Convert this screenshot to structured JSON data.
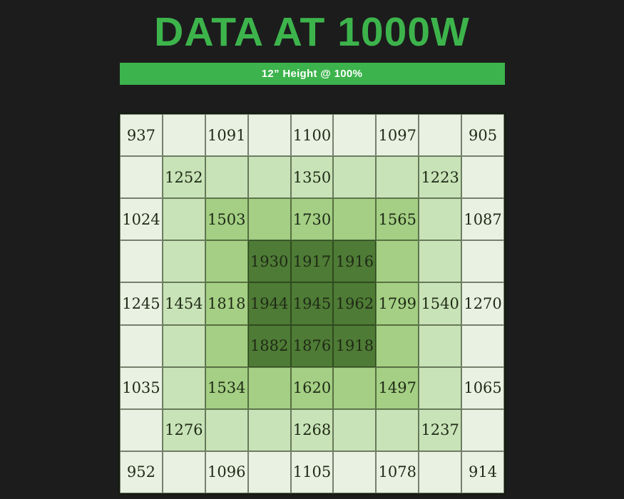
{
  "page": {
    "title": "DATA AT 1000W",
    "banner_label": "12” Height @ 100%"
  },
  "chart_data": {
    "type": "heatmap",
    "title": "DATA AT 1000W",
    "subtitle": "12” Height @ 100%",
    "grid": {
      "rows": 9,
      "cols": 9
    },
    "values": [
      [
        937,
        null,
        1091,
        null,
        1100,
        null,
        1097,
        null,
        905
      ],
      [
        null,
        1252,
        null,
        null,
        1350,
        null,
        null,
        1223,
        null
      ],
      [
        1024,
        null,
        1503,
        null,
        1730,
        null,
        1565,
        null,
        1087
      ],
      [
        null,
        null,
        null,
        1930,
        1917,
        1916,
        null,
        null,
        null
      ],
      [
        1245,
        1454,
        1818,
        1944,
        1945,
        1962,
        1799,
        1540,
        1270
      ],
      [
        null,
        null,
        null,
        1882,
        1876,
        1918,
        null,
        null,
        null
      ],
      [
        1035,
        null,
        1534,
        null,
        1620,
        null,
        1497,
        null,
        1065
      ],
      [
        null,
        1276,
        null,
        null,
        1268,
        null,
        null,
        1237,
        null
      ],
      [
        952,
        null,
        1096,
        null,
        1105,
        null,
        1078,
        null,
        914
      ]
    ],
    "shade_levels": [
      [
        0,
        0,
        0,
        0,
        0,
        0,
        0,
        0,
        0
      ],
      [
        0,
        1,
        1,
        1,
        1,
        1,
        1,
        1,
        0
      ],
      [
        0,
        1,
        2,
        2,
        2,
        2,
        2,
        1,
        0
      ],
      [
        0,
        1,
        2,
        3,
        3,
        3,
        2,
        1,
        0
      ],
      [
        0,
        1,
        2,
        3,
        3,
        3,
        2,
        1,
        0
      ],
      [
        0,
        1,
        2,
        3,
        3,
        3,
        2,
        1,
        0
      ],
      [
        0,
        1,
        2,
        2,
        2,
        2,
        2,
        1,
        0
      ],
      [
        0,
        1,
        1,
        1,
        1,
        1,
        1,
        1,
        0
      ],
      [
        0,
        0,
        0,
        0,
        0,
        0,
        0,
        0,
        0
      ]
    ],
    "palette": [
      "#e9f2e2",
      "#c9e3b8",
      "#a4cf84",
      "#4e7b35"
    ],
    "colors": {
      "accent_green": "#3db44b",
      "banner_background": "#3cb34c",
      "banner_text": "#ffffff",
      "cell_text": "#1f2a16",
      "page_background": "#1c1c1d",
      "grid_line": "#16220c"
    },
    "legend_position": "none",
    "gridlines": true
  }
}
